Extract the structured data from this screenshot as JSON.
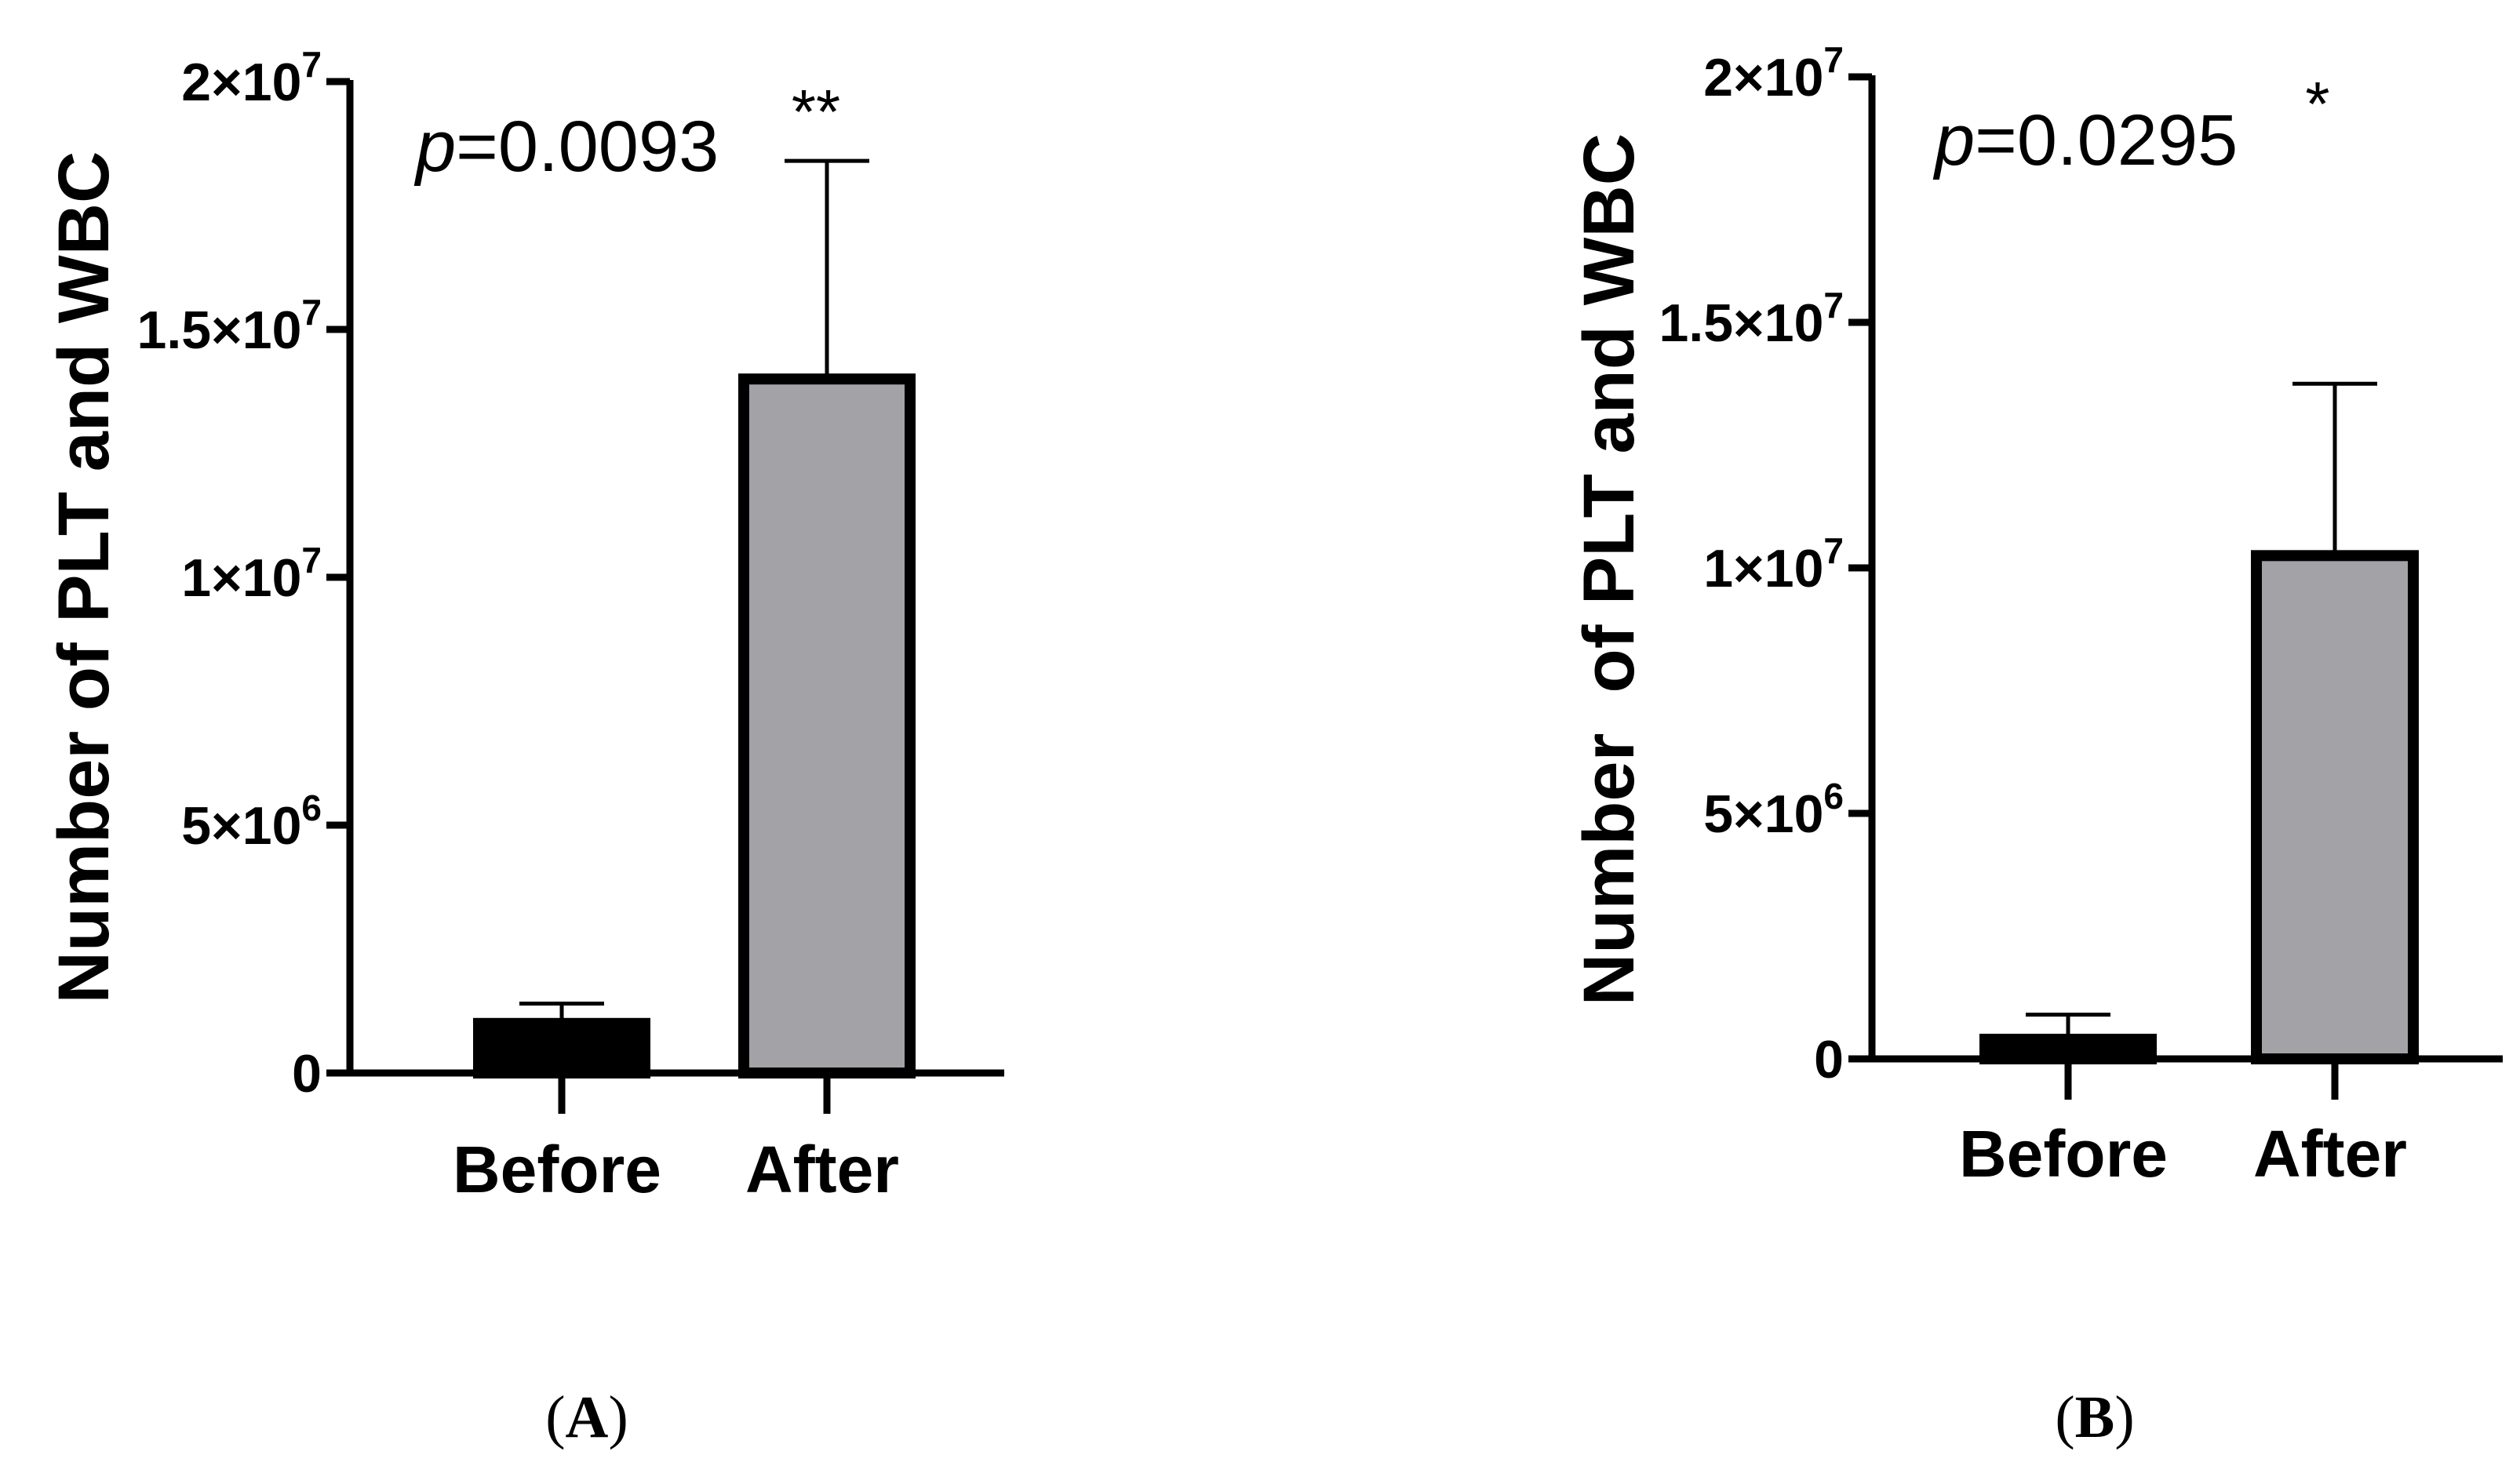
{
  "chart_data": [
    {
      "type": "bar",
      "panel": "A",
      "ylabel": "Number of PLT and WBC",
      "categories": [
        "Before",
        "After"
      ],
      "values": [
        1000000,
        14000000
      ],
      "errors": [
        400000,
        4400000
      ],
      "ylim": [
        0,
        20000000
      ],
      "yticks": [
        {
          "value": 0,
          "base": "0",
          "exp": ""
        },
        {
          "value": 5000000,
          "base": "5×10",
          "exp": "6"
        },
        {
          "value": 10000000,
          "base": "1×10",
          "exp": "7"
        },
        {
          "value": 15000000,
          "base": "1.5×10",
          "exp": "7"
        },
        {
          "value": 20000000,
          "base": "2×10",
          "exp": "7"
        }
      ],
      "bar_colors": [
        "#000000",
        "#a3a2a7"
      ],
      "p_value": {
        "prefix": "p",
        "text": "=0.0093"
      },
      "significance": "**",
      "grid": false
    },
    {
      "type": "bar",
      "panel": "B",
      "ylabel": "Number  of PLT and WBC",
      "categories": [
        "Before",
        "After"
      ],
      "values": [
        400000,
        10250000
      ],
      "errors": [
        500000,
        3500000
      ],
      "ylim": [
        0,
        20000000
      ],
      "yticks": [
        {
          "value": 0,
          "base": "0",
          "exp": ""
        },
        {
          "value": 5000000,
          "base": "5×10",
          "exp": "6"
        },
        {
          "value": 10000000,
          "base": "1×10",
          "exp": "7"
        },
        {
          "value": 15000000,
          "base": "1.5×10",
          "exp": "7"
        },
        {
          "value": 20000000,
          "base": "2×10",
          "exp": "7"
        }
      ],
      "bar_colors": [
        "#000000",
        "#a3a2a7"
      ],
      "p_value": {
        "prefix": "p",
        "text": "=0.0295"
      },
      "significance": "*",
      "grid": false
    }
  ]
}
